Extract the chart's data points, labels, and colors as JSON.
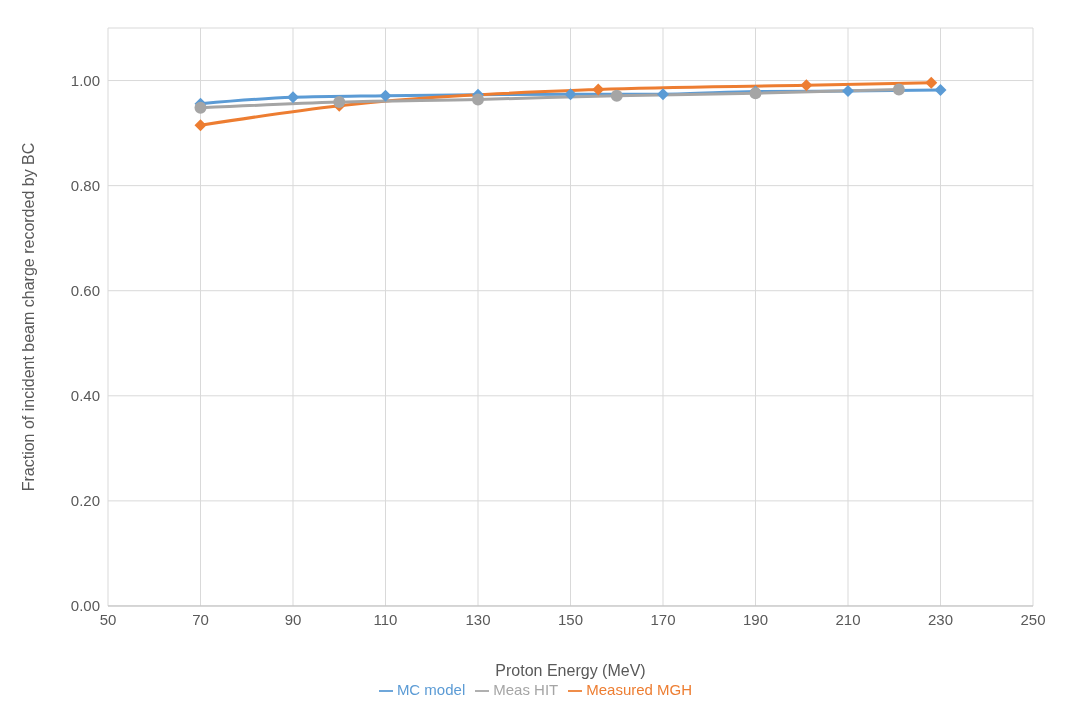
{
  "chart_data": {
    "type": "line",
    "xlabel": "Proton Energy (MeV)",
    "ylabel": "Fraction of incident beam charge recorded by BC",
    "xlim": [
      50,
      250
    ],
    "xticks": [
      50,
      70,
      90,
      110,
      130,
      150,
      170,
      190,
      210,
      230,
      250
    ],
    "ylim": [
      0,
      1.1
    ],
    "yticks": [
      {
        "value": 0,
        "label": "0.00"
      },
      {
        "value": 0.2,
        "label": "0.20"
      },
      {
        "value": 0.4,
        "label": "0.40"
      },
      {
        "value": 0.6,
        "label": "0.60"
      },
      {
        "value": 0.8,
        "label": "0.80"
      },
      {
        "value": 1,
        "label": "1.00"
      }
    ],
    "grid": true,
    "legend": "bottom",
    "series": [
      {
        "name": "MC model",
        "color": "#5b9bd5",
        "marker": "diamond",
        "x": [
          70,
          90,
          110,
          130,
          150,
          170,
          190,
          210,
          230
        ],
        "values": [
          0.956,
          0.968,
          0.971,
          0.973,
          0.974,
          0.974,
          0.979,
          0.98,
          0.982
        ]
      },
      {
        "name": "Measured MGH",
        "color": "#ed7d31",
        "marker": "diamond",
        "x": [
          70,
          100,
          156,
          201,
          228
        ],
        "values": [
          0.915,
          0.952,
          0.983,
          0.991,
          0.996
        ]
      },
      {
        "name": "Meas HIT",
        "color": "#a5a5a5",
        "marker": "circle",
        "x": [
          70,
          100,
          130,
          160,
          190,
          221
        ],
        "values": [
          0.948,
          0.959,
          0.964,
          0.971,
          0.976,
          0.983
        ]
      }
    ]
  }
}
